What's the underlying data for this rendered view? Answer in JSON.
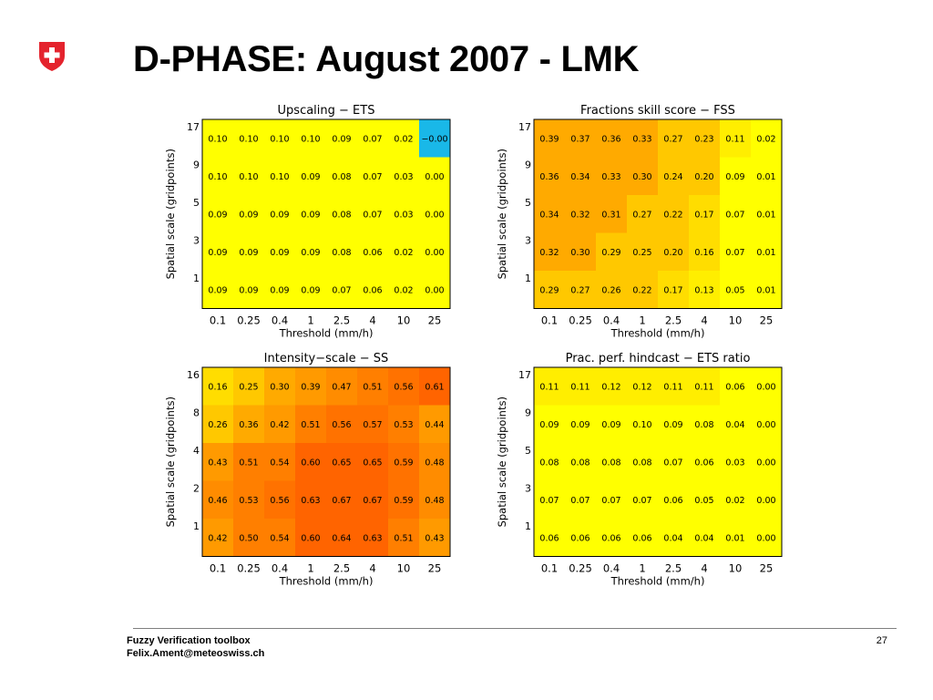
{
  "slide": {
    "title": "D-PHASE: August 2007 - LMK",
    "footer_line1": "Fuzzy Verification toolbox",
    "footer_line2": "Felix.Ament@meteoswiss.ch",
    "page_number": "27",
    "logo": "swiss-cross-shield",
    "logo_colors": {
      "shield": "#e4232d",
      "cross": "#ffffff"
    }
  },
  "chart_data": [
    {
      "type": "heatmap",
      "title": "Upscaling − ETS",
      "xlabel": "Threshold (mm/h)",
      "ylabel": "Spatial scale (gridpoints)",
      "x_categories": [
        "0.1",
        "0.25",
        "0.4",
        "1",
        "2.5",
        "4",
        "10",
        "25"
      ],
      "y_categories": [
        "17",
        "9",
        "5",
        "3",
        "1"
      ],
      "values": [
        [
          "0.10",
          "0.10",
          "0.10",
          "0.10",
          "0.09",
          "0.07",
          "0.02",
          "−0.00"
        ],
        [
          "0.10",
          "0.10",
          "0.10",
          "0.09",
          "0.08",
          "0.07",
          "0.03",
          "0.00"
        ],
        [
          "0.09",
          "0.09",
          "0.09",
          "0.09",
          "0.08",
          "0.07",
          "0.03",
          "0.00"
        ],
        [
          "0.09",
          "0.09",
          "0.09",
          "0.09",
          "0.08",
          "0.06",
          "0.02",
          "0.00"
        ],
        [
          "0.09",
          "0.09",
          "0.09",
          "0.09",
          "0.07",
          "0.06",
          "0.02",
          "0.00"
        ]
      ],
      "cell_colors": [
        [
          "#ffff00",
          "#ffff00",
          "#ffff00",
          "#ffff00",
          "#ffff00",
          "#ffff00",
          "#ffff00",
          "#19b8e8"
        ],
        [
          "#ffff00",
          "#ffff00",
          "#ffff00",
          "#ffff00",
          "#ffff00",
          "#ffff00",
          "#ffff00",
          "#ffff00"
        ],
        [
          "#ffff00",
          "#ffff00",
          "#ffff00",
          "#ffff00",
          "#ffff00",
          "#ffff00",
          "#ffff00",
          "#ffff00"
        ],
        [
          "#ffff00",
          "#ffff00",
          "#ffff00",
          "#ffff00",
          "#ffff00",
          "#ffff00",
          "#ffff00",
          "#ffff00"
        ],
        [
          "#ffff00",
          "#ffff00",
          "#ffff00",
          "#ffff00",
          "#ffff00",
          "#ffff00",
          "#ffff00",
          "#ffff00"
        ]
      ]
    },
    {
      "type": "heatmap",
      "title": "Fractions skill score − FSS",
      "xlabel": "Threshold (mm/h)",
      "ylabel": "Spatial scale (gridpoints)",
      "x_categories": [
        "0.1",
        "0.25",
        "0.4",
        "1",
        "2.5",
        "4",
        "10",
        "25"
      ],
      "y_categories": [
        "17",
        "9",
        "5",
        "3",
        "1"
      ],
      "values": [
        [
          "0.39",
          "0.37",
          "0.36",
          "0.33",
          "0.27",
          "0.23",
          "0.11",
          "0.02"
        ],
        [
          "0.36",
          "0.34",
          "0.33",
          "0.30",
          "0.24",
          "0.20",
          "0.09",
          "0.01"
        ],
        [
          "0.34",
          "0.32",
          "0.31",
          "0.27",
          "0.22",
          "0.17",
          "0.07",
          "0.01"
        ],
        [
          "0.32",
          "0.30",
          "0.29",
          "0.25",
          "0.20",
          "0.16",
          "0.07",
          "0.01"
        ],
        [
          "0.29",
          "0.27",
          "0.26",
          "0.22",
          "0.17",
          "0.13",
          "0.05",
          "0.01"
        ]
      ],
      "cell_colors": [
        [
          "#ffaa00",
          "#ffaa00",
          "#ffaa00",
          "#ffaa00",
          "#ffc800",
          "#ffc800",
          "#ffee00",
          "#ffff00"
        ],
        [
          "#ffaa00",
          "#ffaa00",
          "#ffaa00",
          "#ffaa00",
          "#ffc800",
          "#ffc800",
          "#ffff00",
          "#ffff00"
        ],
        [
          "#ffaa00",
          "#ffaa00",
          "#ffaa00",
          "#ffc800",
          "#ffc800",
          "#ffdd00",
          "#ffff00",
          "#ffff00"
        ],
        [
          "#ffaa00",
          "#ffaa00",
          "#ffc800",
          "#ffc800",
          "#ffc800",
          "#ffdd00",
          "#ffff00",
          "#ffff00"
        ],
        [
          "#ffc800",
          "#ffc800",
          "#ffc800",
          "#ffc800",
          "#ffdd00",
          "#ffee00",
          "#ffff00",
          "#ffff00"
        ]
      ]
    },
    {
      "type": "heatmap",
      "title": "Intensity−scale − SS",
      "xlabel": "Threshold (mm/h)",
      "ylabel": "Spatial scale (gridpoints)",
      "x_categories": [
        "0.1",
        "0.25",
        "0.4",
        "1",
        "2.5",
        "4",
        "10",
        "25"
      ],
      "y_categories": [
        "16",
        "8",
        "4",
        "2",
        "1"
      ],
      "values": [
        [
          "0.16",
          "0.25",
          "0.30",
          "0.39",
          "0.47",
          "0.51",
          "0.56",
          "0.61"
        ],
        [
          "0.26",
          "0.36",
          "0.42",
          "0.51",
          "0.56",
          "0.57",
          "0.53",
          "0.44"
        ],
        [
          "0.43",
          "0.51",
          "0.54",
          "0.60",
          "0.65",
          "0.65",
          "0.59",
          "0.48"
        ],
        [
          "0.46",
          "0.53",
          "0.56",
          "0.63",
          "0.67",
          "0.67",
          "0.59",
          "0.48"
        ],
        [
          "0.42",
          "0.50",
          "0.54",
          "0.60",
          "0.64",
          "0.63",
          "0.51",
          "0.43"
        ]
      ],
      "cell_colors": [
        [
          "#ffdd00",
          "#ffc800",
          "#ffaa00",
          "#ff9a00",
          "#ff8c00",
          "#ff7f00",
          "#ff7200",
          "#ff6400"
        ],
        [
          "#ffc800",
          "#ffaa00",
          "#ff9a00",
          "#ff7f00",
          "#ff7200",
          "#ff7200",
          "#ff7f00",
          "#ff9a00"
        ],
        [
          "#ff9a00",
          "#ff7f00",
          "#ff7f00",
          "#ff6400",
          "#ff6400",
          "#ff6400",
          "#ff7200",
          "#ff8c00"
        ],
        [
          "#ff8c00",
          "#ff7f00",
          "#ff7200",
          "#ff6400",
          "#ff6400",
          "#ff6400",
          "#ff7200",
          "#ff8c00"
        ],
        [
          "#ff9a00",
          "#ff7f00",
          "#ff7f00",
          "#ff6400",
          "#ff6400",
          "#ff6400",
          "#ff7f00",
          "#ff9a00"
        ]
      ]
    },
    {
      "type": "heatmap",
      "title": "Prac. perf. hindcast − ETS ratio",
      "xlabel": "Threshold (mm/h)",
      "ylabel": "Spatial scale (gridpoints)",
      "x_categories": [
        "0.1",
        "0.25",
        "0.4",
        "1",
        "2.5",
        "4",
        "10",
        "25"
      ],
      "y_categories": [
        "17",
        "9",
        "5",
        "3",
        "1"
      ],
      "values": [
        [
          "0.11",
          "0.11",
          "0.12",
          "0.12",
          "0.11",
          "0.11",
          "0.06",
          "0.00"
        ],
        [
          "0.09",
          "0.09",
          "0.09",
          "0.10",
          "0.09",
          "0.08",
          "0.04",
          "0.00"
        ],
        [
          "0.08",
          "0.08",
          "0.08",
          "0.08",
          "0.07",
          "0.06",
          "0.03",
          "0.00"
        ],
        [
          "0.07",
          "0.07",
          "0.07",
          "0.07",
          "0.06",
          "0.05",
          "0.02",
          "0.00"
        ],
        [
          "0.06",
          "0.06",
          "0.06",
          "0.06",
          "0.04",
          "0.04",
          "0.01",
          "0.00"
        ]
      ],
      "cell_colors": [
        [
          "#ffee00",
          "#ffee00",
          "#ffee00",
          "#ffee00",
          "#ffee00",
          "#ffee00",
          "#ffff00",
          "#ffff00"
        ],
        [
          "#ffff00",
          "#ffff00",
          "#ffff00",
          "#ffff00",
          "#ffff00",
          "#ffff00",
          "#ffff00",
          "#ffff00"
        ],
        [
          "#ffff00",
          "#ffff00",
          "#ffff00",
          "#ffff00",
          "#ffff00",
          "#ffff00",
          "#ffff00",
          "#ffff00"
        ],
        [
          "#ffff00",
          "#ffff00",
          "#ffff00",
          "#ffff00",
          "#ffff00",
          "#ffff00",
          "#ffff00",
          "#ffff00"
        ],
        [
          "#ffff00",
          "#ffff00",
          "#ffff00",
          "#ffff00",
          "#ffff00",
          "#ffff00",
          "#ffff00",
          "#ffff00"
        ]
      ]
    }
  ]
}
